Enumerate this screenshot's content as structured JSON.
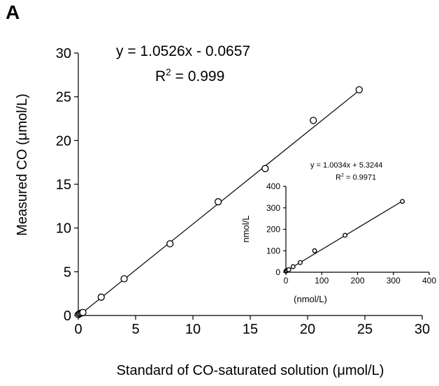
{
  "panel_label": "A",
  "chart_data": [
    {
      "type": "scatter",
      "title": "",
      "xlabel": "Standard of CO-saturated solution (μmol/L)",
      "ylabel": "Measured CO (μmol/L)",
      "xlim": [
        0,
        30
      ],
      "ylim": [
        0,
        30
      ],
      "xticks": [
        0,
        5,
        10,
        15,
        20,
        25,
        30
      ],
      "yticks": [
        0,
        5,
        10,
        15,
        20,
        25,
        30
      ],
      "grid": false,
      "annotation": {
        "equation": "y = 1.0526x - 0.0657",
        "r2_label": "R",
        "r2_exp": "2",
        "r2_value": " = 0.999"
      },
      "fit": {
        "slope": 1.0526,
        "intercept": -0.0657
      },
      "series": [
        {
          "x": [
            0.0,
            0.1,
            0.2,
            0.3,
            0.4,
            2.0,
            4.0,
            8.0,
            12.2,
            16.3,
            20.5,
            24.5
          ],
          "y": [
            0.1,
            0.2,
            0.25,
            0.3,
            0.35,
            2.1,
            4.2,
            8.2,
            13.0,
            16.8,
            22.3,
            25.8
          ]
        }
      ]
    },
    {
      "type": "scatter",
      "title": "",
      "xlabel": "(nmol/L)",
      "ylabel": "nmol/L",
      "xlim": [
        0,
        400
      ],
      "ylim": [
        0,
        400
      ],
      "xticks": [
        0,
        100,
        200,
        300,
        400
      ],
      "yticks": [
        0,
        100,
        200,
        300,
        400
      ],
      "grid": false,
      "annotation": {
        "equation": "y = 1.0034x + 5.3244",
        "r2_label": "R",
        "r2_exp": "2",
        "r2_value": " = 0.9971"
      },
      "fit": {
        "slope": 1.0034,
        "intercept": 5.3244
      },
      "series": [
        {
          "x": [
            0,
            2,
            5,
            8,
            20,
            40,
            80,
            165,
            325
          ],
          "y": [
            5,
            7,
            10,
            12,
            26,
            45,
            100,
            172,
            330
          ]
        }
      ]
    }
  ]
}
